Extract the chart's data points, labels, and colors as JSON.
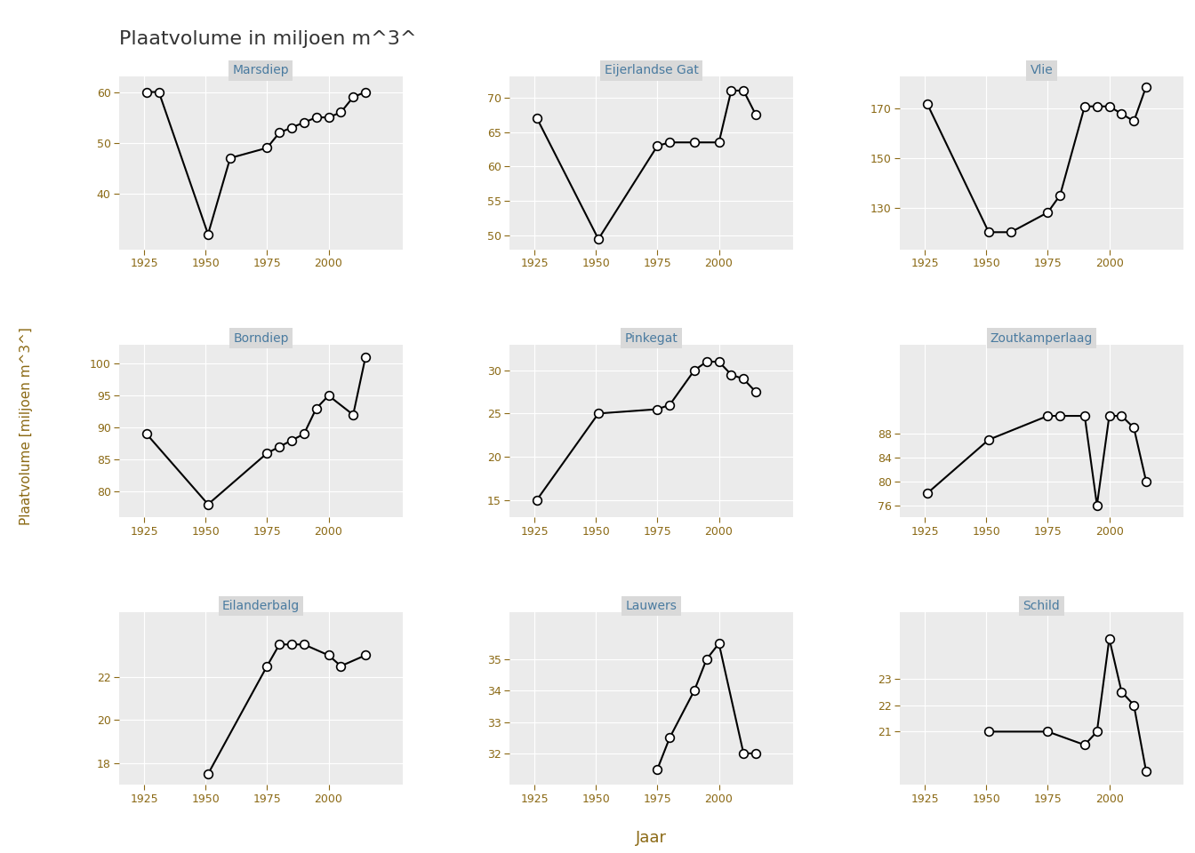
{
  "title": "Plaatvolume in miljoen m^3^",
  "ylabel": "Plaatvolume [miljoen m^3^]",
  "xlabel": "Jaar",
  "subplots": [
    {
      "name": "Marsdiep",
      "years": [
        1926,
        1931,
        1951,
        1960,
        1975,
        1980,
        1985,
        1990,
        1995,
        2000,
        2005,
        2010,
        2015
      ],
      "values": [
        60,
        60,
        32,
        47,
        49,
        52,
        53,
        54,
        55,
        55,
        56,
        59,
        60
      ],
      "yticks": [
        40,
        50,
        60
      ],
      "ylim": [
        29,
        63
      ]
    },
    {
      "name": "Eijerlandse Gat",
      "years": [
        1926,
        1951,
        1975,
        1980,
        1990,
        2000,
        2005,
        2010,
        2015
      ],
      "values": [
        67,
        49.5,
        63,
        63.5,
        63.5,
        63.5,
        71,
        71,
        67.5
      ],
      "yticks": [
        50,
        55,
        60,
        65,
        70
      ],
      "ylim": [
        48,
        73
      ]
    },
    {
      "name": "Vlie",
      "years": [
        1926,
        1951,
        1960,
        1975,
        1980,
        1990,
        1995,
        2000,
        2005,
        2010,
        2015
      ],
      "values": [
        172,
        120,
        120,
        128,
        135,
        171,
        171,
        171,
        168,
        165,
        179
      ],
      "yticks": [
        130,
        150,
        170
      ],
      "ylim": [
        113,
        183
      ]
    },
    {
      "name": "Borndiep",
      "years": [
        1926,
        1951,
        1975,
        1980,
        1985,
        1990,
        1995,
        2000,
        2010,
        2015
      ],
      "values": [
        89,
        78,
        86,
        87,
        88,
        89,
        93,
        95,
        92,
        101
      ],
      "yticks": [
        80,
        85,
        90,
        95,
        100
      ],
      "ylim": [
        76,
        103
      ]
    },
    {
      "name": "Pinkegat",
      "years": [
        1926,
        1951,
        1975,
        1980,
        1990,
        1995,
        2000,
        2005,
        2010,
        2015
      ],
      "values": [
        15,
        25,
        25.5,
        26,
        30,
        31,
        31,
        29.5,
        29,
        27.5
      ],
      "yticks": [
        15,
        20,
        25,
        30
      ],
      "ylim": [
        13,
        33
      ]
    },
    {
      "name": "Zoutkamperlaag",
      "years": [
        1926,
        1951,
        1975,
        1980,
        1990,
        1995,
        2000,
        2005,
        2010,
        2015
      ],
      "values": [
        78,
        87,
        91,
        91,
        91,
        76,
        91,
        91,
        89,
        80
      ],
      "yticks": [
        76,
        80,
        84,
        88
      ],
      "ylim": [
        74,
        103
      ]
    },
    {
      "name": "Eilanderbalg",
      "years": [
        1951,
        1975,
        1980,
        1985,
        1990,
        2000,
        2005,
        2015
      ],
      "values": [
        17.5,
        22.5,
        23.5,
        23.5,
        23.5,
        23,
        22.5,
        23
      ],
      "yticks": [
        18,
        20,
        22
      ],
      "ylim": [
        17,
        25
      ]
    },
    {
      "name": "Lauwers",
      "years": [
        1975,
        1980,
        1990,
        1995,
        2000,
        2010,
        2015
      ],
      "values": [
        31.5,
        32.5,
        34,
        35,
        35.5,
        32,
        32
      ],
      "yticks": [
        32,
        33,
        34,
        35
      ],
      "ylim": [
        31,
        36.5
      ]
    },
    {
      "name": "Schild",
      "years": [
        1951,
        1975,
        1990,
        1995,
        2000,
        2005,
        2010,
        2015
      ],
      "values": [
        21,
        21,
        20.5,
        21,
        24.5,
        22.5,
        22,
        19.5
      ],
      "yticks": [
        21,
        22,
        23
      ],
      "ylim": [
        19,
        25.5
      ]
    }
  ],
  "fig_bg": "#FFFFFF",
  "panel_bg": "#EBEBEB",
  "strip_bg": "#D9D9D9",
  "grid_color": "#FFFFFF",
  "line_color": "#000000",
  "marker_facecolor": "#FFFFFF",
  "marker_edgecolor": "#000000",
  "title_color": "#333333",
  "axis_label_color": "#8B6914",
  "strip_text_color": "#4A7BA0",
  "tick_label_color": "#8B6914",
  "xlim": [
    1915,
    2030
  ],
  "xticks": [
    1925,
    1950,
    1975,
    2000
  ]
}
